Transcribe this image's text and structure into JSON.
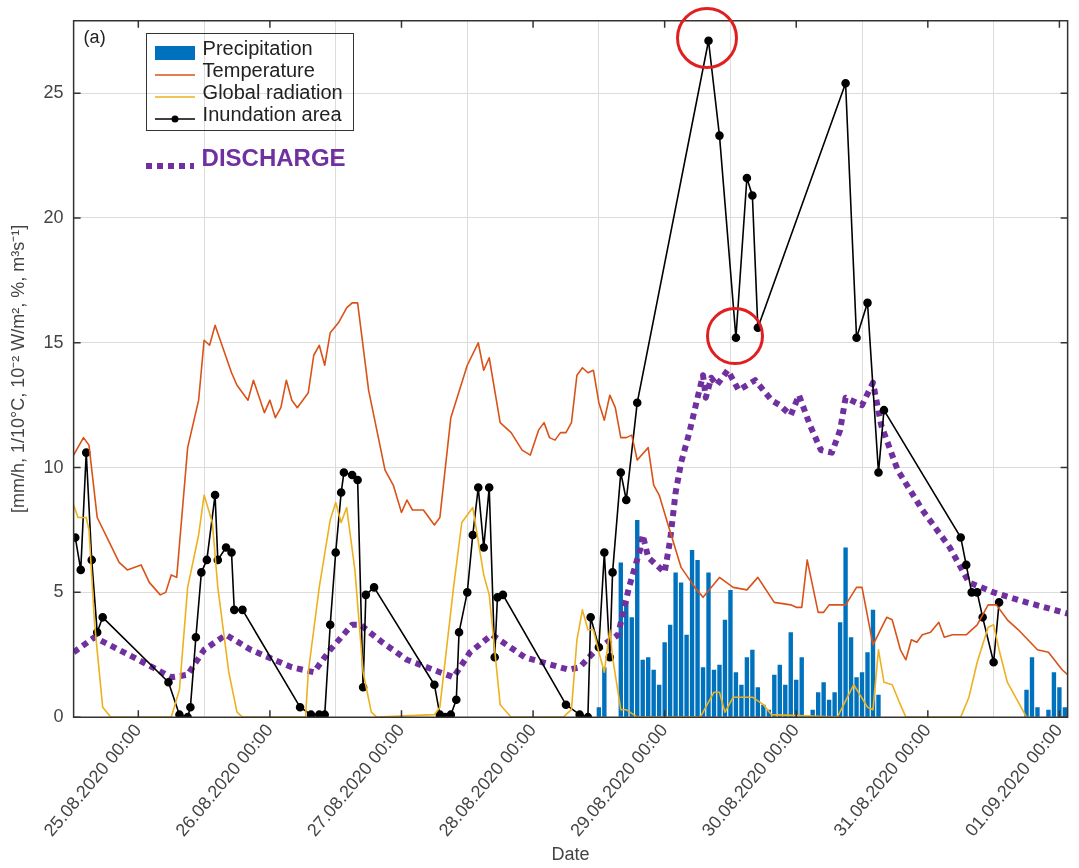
{
  "chart_data": {
    "type": "line",
    "xlabel": "Date",
    "ylabel": "[mm/h, 1/10°C, 10⁻² W/m², %, m³s⁻¹]",
    "annotations": [
      "(a)"
    ],
    "xlim": [
      "2020-08-24T12:12",
      "2020-09-01T01:30"
    ],
    "xticks": [
      {
        "value": "2020-08-25",
        "label": "25.08.2020 00:00"
      },
      {
        "value": "2020-08-26",
        "label": "26.08.2020 00:00"
      },
      {
        "value": "2020-08-27",
        "label": "27.08.2020 00:00"
      },
      {
        "value": "2020-08-28",
        "label": "28.08.2020 00:00"
      },
      {
        "value": "2020-08-29",
        "label": "29.08.2020 00:00"
      },
      {
        "value": "2020-08-30",
        "label": "30.08.2020 00:00"
      },
      {
        "value": "2020-08-31",
        "label": "31.08.2020 00:00"
      },
      {
        "value": "2020-09-01",
        "label": "01.09.2020 00:00"
      }
    ],
    "ylim": [
      0,
      27.9
    ],
    "yticks": [
      0,
      5,
      10,
      15,
      20,
      25
    ],
    "grid": true,
    "legend": "top left",
    "series": [
      {
        "name": "Precipitation",
        "type": "bar",
        "color": "#0072bd",
        "x": [
          "2020-08-28T12:00",
          "2020-08-28T13:00",
          "2020-08-28T16:00",
          "2020-08-28T17:00",
          "2020-08-28T18:00",
          "2020-08-28T19:00",
          "2020-08-28T20:00",
          "2020-08-28T21:00",
          "2020-08-28T22:00",
          "2020-08-28T23:00",
          "2020-08-29T00:00",
          "2020-08-29T01:00",
          "2020-08-29T02:00",
          "2020-08-29T03:00",
          "2020-08-29T04:00",
          "2020-08-29T05:00",
          "2020-08-29T06:00",
          "2020-08-29T07:00",
          "2020-08-29T08:00",
          "2020-08-29T09:00",
          "2020-08-29T10:00",
          "2020-08-29T11:00",
          "2020-08-29T12:00",
          "2020-08-29T13:00",
          "2020-08-29T14:00",
          "2020-08-29T15:00",
          "2020-08-29T16:00",
          "2020-08-29T17:00",
          "2020-08-29T18:00",
          "2020-08-29T19:00",
          "2020-08-29T20:00",
          "2020-08-29T21:00",
          "2020-08-29T22:00",
          "2020-08-29T23:00",
          "2020-08-30T00:00",
          "2020-08-30T01:00",
          "2020-08-30T03:00",
          "2020-08-30T04:00",
          "2020-08-30T05:00",
          "2020-08-30T06:00",
          "2020-08-30T07:00",
          "2020-08-30T08:00",
          "2020-08-30T09:00",
          "2020-08-30T10:00",
          "2020-08-30T11:00",
          "2020-08-30T12:00",
          "2020-08-30T13:00",
          "2020-08-30T14:00",
          "2020-08-30T15:00",
          "2020-08-31T18:00",
          "2020-08-31T19:00",
          "2020-08-31T20:00",
          "2020-08-31T22:00",
          "2020-08-31T23:00",
          "2020-09-01T00:00",
          "2020-09-01T01:00"
        ],
        "values": [
          0.4,
          2.0,
          6.2,
          4.6,
          4.0,
          7.9,
          2.3,
          2.4,
          1.9,
          1.3,
          3.0,
          3.7,
          5.8,
          5.4,
          3.3,
          6.7,
          6.3,
          2.0,
          5.8,
          1.9,
          2.1,
          3.9,
          5.1,
          1.8,
          1.3,
          2.4,
          2.7,
          1.2,
          0.5,
          0.3,
          1.7,
          2.1,
          1.3,
          3.4,
          1.5,
          2.4,
          0.3,
          1.0,
          1.4,
          0.7,
          1.0,
          3.8,
          6.8,
          3.2,
          1.6,
          1.8,
          2.6,
          4.3,
          0.9,
          1.1,
          2.4,
          0.4,
          0.3,
          1.8,
          1.2,
          0.4
        ]
      },
      {
        "name": "Temperature",
        "color": "#d95319",
        "marker": "none",
        "line_style": "solid",
        "x": [
          "2020-08-24T12:12",
          "2020-08-24T14:00",
          "2020-08-24T15:00",
          "2020-08-24T16:30",
          "2020-08-24T18:30",
          "2020-08-24T20:30",
          "2020-08-24T22:00",
          "2020-08-25T00:30",
          "2020-08-25T02:00",
          "2020-08-25T04:00",
          "2020-08-25T05:00",
          "2020-08-25T06:00",
          "2020-08-25T07:00",
          "2020-08-25T09:00",
          "2020-08-25T11:00",
          "2020-08-25T12:00",
          "2020-08-25T13:00",
          "2020-08-25T14:00",
          "2020-08-25T17:00",
          "2020-08-25T18:00",
          "2020-08-25T20:00",
          "2020-08-25T21:00",
          "2020-08-25T23:00",
          "2020-08-26T00:00",
          "2020-08-26T01:00",
          "2020-08-26T02:00",
          "2020-08-26T03:00",
          "2020-08-26T04:00",
          "2020-08-26T05:00",
          "2020-08-26T07:00",
          "2020-08-26T08:00",
          "2020-08-26T09:00",
          "2020-08-26T10:00",
          "2020-08-26T11:00",
          "2020-08-26T12:30",
          "2020-08-26T14:00",
          "2020-08-26T15:00",
          "2020-08-26T16:00",
          "2020-08-26T18:00",
          "2020-08-26T21:00",
          "2020-08-26T22:30",
          "2020-08-27T00:00",
          "2020-08-27T01:00",
          "2020-08-27T02:00",
          "2020-08-27T04:00",
          "2020-08-27T06:00",
          "2020-08-27T07:00",
          "2020-08-27T09:00",
          "2020-08-27T12:00",
          "2020-08-27T14:00",
          "2020-08-27T15:00",
          "2020-08-27T16:00",
          "2020-08-27T18:00",
          "2020-08-27T20:00",
          "2020-08-27T22:00",
          "2020-08-27T23:30",
          "2020-08-28T01:00",
          "2020-08-28T02:00",
          "2020-08-28T03:00",
          "2020-08-28T04:00",
          "2020-08-28T05:00",
          "2020-08-28T06:00",
          "2020-08-28T07:00",
          "2020-08-28T08:00",
          "2020-08-28T09:00",
          "2020-08-28T10:00",
          "2020-08-28T11:00",
          "2020-08-28T12:00",
          "2020-08-28T13:00",
          "2020-08-28T14:00",
          "2020-08-28T15:00",
          "2020-08-28T16:00",
          "2020-08-28T17:00",
          "2020-08-28T18:00",
          "2020-08-28T19:00",
          "2020-08-28T21:00",
          "2020-08-28T22:00",
          "2020-08-28T23:00",
          "2020-08-29T00:30",
          "2020-08-29T03:00",
          "2020-08-29T05:30",
          "2020-08-29T07:00",
          "2020-08-29T10:00",
          "2020-08-29T12:30",
          "2020-08-29T15:00",
          "2020-08-29T17:00",
          "2020-08-29T20:00",
          "2020-08-29T23:00",
          "2020-08-30T00:00",
          "2020-08-30T01:00",
          "2020-08-30T02:00",
          "2020-08-30T04:00",
          "2020-08-30T05:00",
          "2020-08-30T06:00",
          "2020-08-30T09:00",
          "2020-08-30T11:00",
          "2020-08-30T12:00",
          "2020-08-30T14:00",
          "2020-08-30T16:30",
          "2020-08-30T17:30",
          "2020-08-30T19:00",
          "2020-08-30T20:00",
          "2020-08-30T21:00",
          "2020-08-30T22:00",
          "2020-08-30T23:00",
          "2020-08-31T00:30",
          "2020-08-31T02:00",
          "2020-08-31T03:00",
          "2020-08-31T04:30",
          "2020-08-31T07:00",
          "2020-08-31T09:00",
          "2020-08-31T11:00",
          "2020-08-31T12:30",
          "2020-08-31T14:30",
          "2020-08-31T16:30",
          "2020-08-31T20:00",
          "2020-08-31T22:00",
          "2020-09-01T00:30",
          "2020-09-01T01:30"
        ],
        "values": [
          10.5,
          11.2,
          10.9,
          8.0,
          7.1,
          6.2,
          5.9,
          6.1,
          5.4,
          4.9,
          5.0,
          5.7,
          5.6,
          10.8,
          12.7,
          15.1,
          14.9,
          15.7,
          13.8,
          13.3,
          12.7,
          13.5,
          12.2,
          12.7,
          12.0,
          12.4,
          13.5,
          12.7,
          12.4,
          13.0,
          14.5,
          14.9,
          14.1,
          15.4,
          15.8,
          16.4,
          16.6,
          16.6,
          13.1,
          9.9,
          9.3,
          8.2,
          8.7,
          8.3,
          8.3,
          7.7,
          8.0,
          12.0,
          14.1,
          15.0,
          13.9,
          14.4,
          11.8,
          11.4,
          10.7,
          10.5,
          11.5,
          11.8,
          11.2,
          11.1,
          11.4,
          11.4,
          11.8,
          13.7,
          14.0,
          13.8,
          13.9,
          12.6,
          11.9,
          12.9,
          12.4,
          11.2,
          11.2,
          11.3,
          10.3,
          10.8,
          9.3,
          8.9,
          7.8,
          6.0,
          5.2,
          4.8,
          5.6,
          5.2,
          5.1,
          5.6,
          4.6,
          4.5,
          4.4,
          4.4,
          6.3,
          4.2,
          4.2,
          4.5,
          4.5,
          5.2,
          5.2,
          2.9,
          4.0,
          3.9,
          2.7,
          2.3,
          3.1,
          3.0,
          3.3,
          3.4,
          3.8,
          3.2,
          3.3,
          3.3,
          3.7,
          4.5,
          4.5,
          3.9,
          3.5,
          2.7,
          2.6,
          1.9,
          1.7
        ]
      },
      {
        "name": "Global radiation",
        "color": "#edb120",
        "marker": "none",
        "line_style": "solid",
        "x": [
          "2020-08-24T12:12",
          "2020-08-24T13:00",
          "2020-08-24T14:30",
          "2020-08-24T15:00",
          "2020-08-24T16:00",
          "2020-08-24T17:30",
          "2020-08-24T19:00",
          "2020-08-25T06:00",
          "2020-08-25T07:30",
          "2020-08-25T09:00",
          "2020-08-25T11:00",
          "2020-08-25T12:00",
          "2020-08-25T13:30",
          "2020-08-25T14:30",
          "2020-08-25T16:30",
          "2020-08-25T18:00",
          "2020-08-25T19:00",
          "2020-08-26T06:30",
          "2020-08-26T07:00",
          "2020-08-26T09:00",
          "2020-08-26T11:00",
          "2020-08-26T12:00",
          "2020-08-26T13:00",
          "2020-08-26T14:00",
          "2020-08-26T15:30",
          "2020-08-26T17:00",
          "2020-08-26T18:30",
          "2020-08-26T19:30",
          "2020-08-27T06:00",
          "2020-08-27T07:00",
          "2020-08-27T09:30",
          "2020-08-27T11:00",
          "2020-08-27T13:00",
          "2020-08-27T15:00",
          "2020-08-27T16:00",
          "2020-08-27T17:00",
          "2020-08-27T18:00",
          "2020-08-27T20:00",
          "2020-08-28T05:30",
          "2020-08-28T07:00",
          "2020-08-28T08:00",
          "2020-08-28T09:00",
          "2020-08-28T10:00",
          "2020-08-28T11:00",
          "2020-08-28T12:00",
          "2020-08-28T13:00",
          "2020-08-28T14:00",
          "2020-08-28T14:30",
          "2020-08-28T16:00",
          "2020-08-28T17:00",
          "2020-08-28T19:00",
          "2020-08-29T06:30",
          "2020-08-29T09:00",
          "2020-08-29T10:00",
          "2020-08-29T11:00",
          "2020-08-29T12:30",
          "2020-08-29T14:30",
          "2020-08-29T16:00",
          "2020-08-29T18:00",
          "2020-08-29T19:30",
          "2020-08-30T07:30",
          "2020-08-30T10:30",
          "2020-08-30T13:00",
          "2020-08-30T14:00",
          "2020-08-30T15:00",
          "2020-08-30T16:00",
          "2020-08-30T17:30",
          "2020-08-30T19:00",
          "2020-08-30T20:00",
          "2020-08-31T06:00",
          "2020-08-31T07:30",
          "2020-08-31T09:00",
          "2020-08-31T10:00",
          "2020-08-31T11:00",
          "2020-08-31T12:00",
          "2020-08-31T13:00",
          "2020-08-31T14:30",
          "2020-08-31T16:00",
          "2020-08-31T18:00"
        ],
        "values": [
          8.5,
          8.0,
          8.0,
          7.5,
          3.8,
          0.4,
          0,
          0,
          1.1,
          5.2,
          7.3,
          8.9,
          7.8,
          5.2,
          1.8,
          0.2,
          0,
          0,
          1.8,
          5.2,
          7.9,
          8.6,
          7.8,
          8.4,
          5.9,
          1.8,
          0.2,
          0,
          0.1,
          0.4,
          5.2,
          7.8,
          8.4,
          5.7,
          4.9,
          2.7,
          0.5,
          0,
          0,
          0.3,
          3.1,
          4.3,
          3.5,
          3.5,
          2.6,
          1.8,
          3.5,
          2.4,
          0.3,
          0.3,
          0,
          0,
          1.0,
          1.0,
          0.2,
          0.8,
          0.8,
          0.8,
          0.5,
          0.1,
          0,
          1.3,
          0.4,
          0.3,
          2.7,
          1.4,
          1.3,
          0.5,
          0,
          0,
          0.8,
          2.2,
          2.9,
          3.6,
          3.7,
          2.7,
          1.4,
          0.8,
          0
        ]
      },
      {
        "name": "Inundation area",
        "color": "#000000",
        "marker": "circle",
        "line_style": "solid",
        "x": [
          "2020-08-24T12:30",
          "2020-08-24T13:30",
          "2020-08-24T14:30",
          "2020-08-24T15:30",
          "2020-08-24T16:30",
          "2020-08-24T17:30",
          "2020-08-25T05:30",
          "2020-08-25T07:30",
          "2020-08-25T09:00",
          "2020-08-25T09:30",
          "2020-08-25T10:30",
          "2020-08-25T11:30",
          "2020-08-25T12:30",
          "2020-08-25T14:00",
          "2020-08-25T14:30",
          "2020-08-25T16:00",
          "2020-08-25T17:00",
          "2020-08-25T17:30",
          "2020-08-25T19:00",
          "2020-08-26T05:30",
          "2020-08-26T07:30",
          "2020-08-26T09:00",
          "2020-08-26T10:00",
          "2020-08-26T11:00",
          "2020-08-26T12:00",
          "2020-08-26T13:00",
          "2020-08-26T13:30",
          "2020-08-26T15:00",
          "2020-08-26T16:00",
          "2020-08-26T17:00",
          "2020-08-26T17:30",
          "2020-08-26T19:00",
          "2020-08-27T06:00",
          "2020-08-27T07:00",
          "2020-08-27T08:00",
          "2020-08-27T09:00",
          "2020-08-27T10:00",
          "2020-08-27T10:30",
          "2020-08-27T12:00",
          "2020-08-27T13:00",
          "2020-08-27T14:00",
          "2020-08-27T15:00",
          "2020-08-27T16:00",
          "2020-08-27T17:00",
          "2020-08-27T17:30",
          "2020-08-27T18:30",
          "2020-08-28T06:00",
          "2020-08-28T08:30",
          "2020-08-28T10:00",
          "2020-08-28T10:30",
          "2020-08-28T12:00",
          "2020-08-28T13:00",
          "2020-08-28T14:00",
          "2020-08-28T14:30",
          "2020-08-28T16:00",
          "2020-08-28T17:00",
          "2020-08-28T19:00",
          "2020-08-29T08:00",
          "2020-08-29T10:00",
          "2020-08-29T13:00",
          "2020-08-29T15:00",
          "2020-08-29T16:00",
          "2020-08-29T17:00",
          "2020-08-30T09:00",
          "2020-08-30T11:00",
          "2020-08-30T13:00",
          "2020-08-30T15:00",
          "2020-08-30T16:00",
          "2020-08-31T06:00",
          "2020-08-31T07:00",
          "2020-08-31T08:00",
          "2020-08-31T09:00",
          "2020-08-31T10:00",
          "2020-08-31T12:00",
          "2020-08-31T13:00"
        ],
        "values": [
          7.2,
          5.9,
          10.6,
          6.3,
          3.4,
          4.0,
          1.4,
          0.1,
          0.0,
          0.4,
          3.2,
          5.8,
          6.3,
          8.9,
          6.3,
          6.8,
          6.6,
          4.3,
          4.3,
          0.4,
          0.1,
          0.1,
          0.1,
          3.7,
          6.6,
          9.0,
          9.8,
          9.7,
          9.5,
          1.2,
          4.9,
          5.2,
          1.3,
          0.1,
          0.0,
          0.1,
          0.7,
          3.4,
          5.0,
          7.3,
          9.2,
          6.8,
          9.2,
          2.4,
          4.8,
          4.9,
          0.5,
          0.1,
          0.0,
          4.0,
          2.8,
          6.6,
          2.4,
          5.8,
          9.8,
          8.7,
          12.6,
          27.1,
          23.3,
          15.2,
          21.6,
          20.9,
          15.6,
          25.4,
          15.2,
          16.6,
          9.8,
          12.3,
          7.2,
          6.1,
          5.0,
          5.0,
          4.0,
          2.2,
          4.6
        ]
      },
      {
        "name": "DISCHARGE",
        "color": "#7030a0",
        "marker": "none",
        "line_style": "dotted",
        "x": [
          "2020-08-24T12:12",
          "2020-08-24T16:00",
          "2020-08-25T00:00",
          "2020-08-25T06:00",
          "2020-08-25T09:00",
          "2020-08-25T12:00",
          "2020-08-25T16:00",
          "2020-08-25T20:30",
          "2020-08-26T04:00",
          "2020-08-26T08:00",
          "2020-08-26T11:00",
          "2020-08-26T15:00",
          "2020-08-26T16:30",
          "2020-08-26T20:30",
          "2020-08-27T01:00",
          "2020-08-27T07:00",
          "2020-08-27T09:30",
          "2020-08-27T12:30",
          "2020-08-27T16:30",
          "2020-08-27T22:30",
          "2020-08-28T06:30",
          "2020-08-28T08:30",
          "2020-08-28T11:30",
          "2020-08-28T15:30",
          "2020-08-28T17:30",
          "2020-08-28T19:30",
          "2020-08-28T20:00",
          "2020-08-28T21:00",
          "2020-08-29T00:00",
          "2020-08-29T01:00",
          "2020-08-29T02:00",
          "2020-08-29T03:00",
          "2020-08-29T04:00",
          "2020-08-29T04:30",
          "2020-08-29T06:00",
          "2020-08-29T07:00",
          "2020-08-29T07:30",
          "2020-08-29T08:30",
          "2020-08-29T09:30",
          "2020-08-29T11:30",
          "2020-08-29T13:30",
          "2020-08-29T16:30",
          "2020-08-29T19:30",
          "2020-08-29T21:00",
          "2020-08-29T23:00",
          "2020-08-30T00:30",
          "2020-08-30T02:30",
          "2020-08-30T04:30",
          "2020-08-30T06:30",
          "2020-08-30T08:00",
          "2020-08-30T09:00",
          "2020-08-30T12:00",
          "2020-08-30T14:00",
          "2020-08-30T15:30",
          "2020-08-30T18:30",
          "2020-08-30T23:00",
          "2020-08-31T04:00",
          "2020-08-31T07:30",
          "2020-08-31T12:00",
          "2020-08-31T18:00",
          "2020-09-01T01:30"
        ],
        "values": [
          2.6,
          3.2,
          2.3,
          1.6,
          1.7,
          2.7,
          3.3,
          2.7,
          2.0,
          1.8,
          2.7,
          3.7,
          3.7,
          3.0,
          2.3,
          1.8,
          1.6,
          2.6,
          3.3,
          2.4,
          1.9,
          2.0,
          2.7,
          3.3,
          5.2,
          6.7,
          7.3,
          6.4,
          5.8,
          7.1,
          9.0,
          10.2,
          11.0,
          11.4,
          12.8,
          13.7,
          12.8,
          13.6,
          13.3,
          13.9,
          13.1,
          13.5,
          12.7,
          12.5,
          12.1,
          12.9,
          11.7,
          10.7,
          10.6,
          11.5,
          12.8,
          12.5,
          13.4,
          11.7,
          9.9,
          8.3,
          6.8,
          5.4,
          5.0,
          4.6,
          4.15
        ]
      }
    ]
  }
}
